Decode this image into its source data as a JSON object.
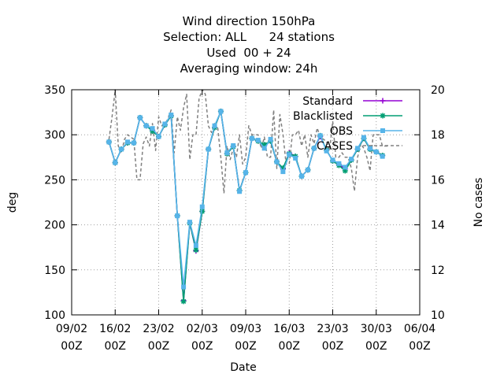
{
  "chart_data": {
    "type": "line",
    "title_lines": [
      "Wind direction 150hPa",
      "Selection: ALL      24 stations",
      "Used  00 + 24",
      "Averaging window: 24h"
    ],
    "xlabel": "Date",
    "ylabel": "deg",
    "y2label": "No cases",
    "x_ticks": [
      {
        "date": "2025-02-09",
        "line1": "09/02",
        "line2": "00Z"
      },
      {
        "date": "2025-02-16",
        "line1": "16/02",
        "line2": "00Z"
      },
      {
        "date": "2025-02-23",
        "line1": "23/02",
        "line2": "00Z"
      },
      {
        "date": "2025-03-02",
        "line1": "02/03",
        "line2": "00Z"
      },
      {
        "date": "2025-03-09",
        "line1": "09/03",
        "line2": "00Z"
      },
      {
        "date": "2025-03-16",
        "line1": "16/03",
        "line2": "00Z"
      },
      {
        "date": "2025-03-23",
        "line1": "23/03",
        "line2": "00Z"
      },
      {
        "date": "2025-03-30",
        "line1": "30/03",
        "line2": "00Z"
      },
      {
        "date": "2025-04-06",
        "line1": "06/04",
        "line2": "00Z"
      }
    ],
    "xlim": [
      "2025-02-09",
      "2025-04-06"
    ],
    "ylim": [
      100,
      350
    ],
    "y_ticks": [
      100,
      150,
      200,
      250,
      300,
      350
    ],
    "y2lim": [
      10,
      20
    ],
    "y2_ticks": [
      10,
      12,
      14,
      16,
      18,
      20
    ],
    "grid": true,
    "legend_position": "top-right",
    "series": [
      {
        "name": "Standard",
        "color": "#9400d3",
        "marker": "plus",
        "x": [
          "2025-02-15 00Z",
          "2025-02-16 00Z",
          "2025-02-17 00Z",
          "2025-02-18 00Z",
          "2025-02-19 00Z",
          "2025-02-20 00Z",
          "2025-02-21 00Z",
          "2025-02-22 00Z",
          "2025-02-23 00Z",
          "2025-02-24 00Z",
          "2025-02-25 00Z",
          "2025-02-26 00Z",
          "2025-02-27 00Z",
          "2025-02-28 00Z",
          "2025-03-01 00Z",
          "2025-03-02 00Z",
          "2025-03-03 00Z",
          "2025-03-04 00Z",
          "2025-03-05 00Z",
          "2025-03-06 00Z",
          "2025-03-07 00Z",
          "2025-03-08 00Z",
          "2025-03-09 00Z",
          "2025-03-10 00Z",
          "2025-03-11 00Z",
          "2025-03-12 00Z",
          "2025-03-13 00Z",
          "2025-03-14 00Z",
          "2025-03-15 00Z",
          "2025-03-16 00Z",
          "2025-03-17 00Z",
          "2025-03-18 00Z",
          "2025-03-19 00Z",
          "2025-03-20 00Z",
          "2025-03-21 00Z",
          "2025-03-22 00Z",
          "2025-03-23 00Z",
          "2025-03-24 00Z",
          "2025-03-25 00Z",
          "2025-03-26 00Z",
          "2025-03-27 00Z",
          "2025-03-28 00Z",
          "2025-03-29 00Z",
          "2025-03-30 00Z",
          "2025-03-31 00Z"
        ],
        "y": [
          292,
          269,
          284,
          291,
          291,
          319,
          310,
          305,
          298,
          311,
          321,
          210,
          116,
          202,
          171,
          215,
          284,
          308,
          326,
          279,
          287,
          238,
          258,
          296,
          293,
          288,
          293,
          270,
          262,
          280,
          276,
          254,
          261,
          285,
          298,
          283,
          271,
          267,
          262,
          272,
          284,
          296,
          284,
          281,
          277
        ]
      },
      {
        "name": "Blacklisted",
        "color": "#009e73",
        "marker": "star",
        "x": [
          "2025-02-15 00Z",
          "2025-02-16 00Z",
          "2025-02-17 00Z",
          "2025-02-18 00Z",
          "2025-02-19 00Z",
          "2025-02-20 00Z",
          "2025-02-21 00Z",
          "2025-02-22 00Z",
          "2025-02-23 00Z",
          "2025-02-24 00Z",
          "2025-02-25 00Z",
          "2025-02-26 00Z",
          "2025-02-27 00Z",
          "2025-02-28 00Z",
          "2025-03-01 00Z",
          "2025-03-02 00Z",
          "2025-03-03 00Z",
          "2025-03-04 00Z",
          "2025-03-05 00Z",
          "2025-03-06 00Z",
          "2025-03-07 00Z",
          "2025-03-08 00Z",
          "2025-03-09 00Z",
          "2025-03-10 00Z",
          "2025-03-11 00Z",
          "2025-03-12 00Z",
          "2025-03-13 00Z",
          "2025-03-14 00Z",
          "2025-03-15 00Z",
          "2025-03-16 00Z",
          "2025-03-17 00Z",
          "2025-03-18 00Z",
          "2025-03-19 00Z",
          "2025-03-20 00Z",
          "2025-03-21 00Z",
          "2025-03-22 00Z",
          "2025-03-23 00Z",
          "2025-03-24 00Z",
          "2025-03-25 00Z",
          "2025-03-26 00Z",
          "2025-03-27 00Z",
          "2025-03-28 00Z",
          "2025-03-29 00Z",
          "2025-03-30 00Z",
          "2025-03-31 00Z"
        ],
        "y": [
          292,
          269,
          284,
          291,
          291,
          319,
          310,
          304,
          298,
          311,
          321,
          210,
          115,
          202,
          172,
          215,
          284,
          308,
          326,
          279,
          287,
          238,
          258,
          296,
          293,
          289,
          293,
          270,
          263,
          279,
          276,
          254,
          261,
          285,
          299,
          283,
          271,
          266,
          260,
          272,
          284,
          296,
          284,
          281,
          277
        ]
      },
      {
        "name": "OBS",
        "color": "#56b4e9",
        "marker": "square",
        "x": [
          "2025-02-15 00Z",
          "2025-02-16 00Z",
          "2025-02-17 00Z",
          "2025-02-18 00Z",
          "2025-02-19 00Z",
          "2025-02-20 00Z",
          "2025-02-21 00Z",
          "2025-02-22 00Z",
          "2025-02-23 00Z",
          "2025-02-24 00Z",
          "2025-02-25 00Z",
          "2025-02-26 00Z",
          "2025-02-27 00Z",
          "2025-02-28 00Z",
          "2025-03-01 00Z",
          "2025-03-02 00Z",
          "2025-03-03 00Z",
          "2025-03-04 00Z",
          "2025-03-05 00Z",
          "2025-03-06 00Z",
          "2025-03-07 00Z",
          "2025-03-08 00Z",
          "2025-03-09 00Z",
          "2025-03-10 00Z",
          "2025-03-11 00Z",
          "2025-03-12 00Z",
          "2025-03-13 00Z",
          "2025-03-14 00Z",
          "2025-03-15 00Z",
          "2025-03-16 00Z",
          "2025-03-17 00Z",
          "2025-03-18 00Z",
          "2025-03-19 00Z",
          "2025-03-20 00Z",
          "2025-03-21 00Z",
          "2025-03-22 00Z",
          "2025-03-23 00Z",
          "2025-03-24 00Z",
          "2025-03-25 00Z",
          "2025-03-26 00Z",
          "2025-03-27 00Z",
          "2025-03-28 00Z",
          "2025-03-29 00Z",
          "2025-03-30 00Z",
          "2025-03-31 00Z"
        ],
        "y": [
          292,
          269,
          284,
          292,
          291,
          319,
          310,
          307,
          298,
          312,
          322,
          210,
          131,
          203,
          177,
          220,
          284,
          310,
          326,
          280,
          288,
          237,
          258,
          296,
          294,
          285,
          295,
          270,
          259,
          278,
          274,
          254,
          261,
          285,
          299,
          282,
          272,
          268,
          264,
          273,
          285,
          297,
          285,
          281,
          276
        ]
      },
      {
        "name": "CASES",
        "color": "#808080",
        "style": "dashed",
        "axis": "y2",
        "x": [
          "2025-02-15 00Z",
          "2025-02-15 12Z",
          "2025-02-16 00Z",
          "2025-02-16 12Z",
          "2025-02-17 00Z",
          "2025-02-17 12Z",
          "2025-02-18 00Z",
          "2025-02-18 12Z",
          "2025-02-19 00Z",
          "2025-02-19 12Z",
          "2025-02-20 00Z",
          "2025-02-20 12Z",
          "2025-02-21 00Z",
          "2025-02-21 12Z",
          "2025-02-22 00Z",
          "2025-02-22 12Z",
          "2025-02-23 00Z",
          "2025-02-23 12Z",
          "2025-02-24 00Z",
          "2025-02-24 12Z",
          "2025-02-25 00Z",
          "2025-02-25 12Z",
          "2025-02-26 00Z",
          "2025-02-26 12Z",
          "2025-02-27 00Z",
          "2025-02-27 12Z",
          "2025-02-28 00Z",
          "2025-02-28 12Z",
          "2025-03-01 00Z",
          "2025-03-01 12Z",
          "2025-03-02 00Z",
          "2025-03-02 12Z",
          "2025-03-03 00Z",
          "2025-03-03 12Z",
          "2025-03-04 00Z",
          "2025-03-04 12Z",
          "2025-03-05 00Z",
          "2025-03-05 12Z",
          "2025-03-06 00Z",
          "2025-03-06 12Z",
          "2025-03-07 00Z",
          "2025-03-07 12Z",
          "2025-03-08 00Z",
          "2025-03-08 12Z",
          "2025-03-09 00Z",
          "2025-03-09 12Z",
          "2025-03-10 00Z",
          "2025-03-10 12Z",
          "2025-03-11 00Z",
          "2025-03-11 12Z",
          "2025-03-12 00Z",
          "2025-03-12 12Z",
          "2025-03-13 00Z",
          "2025-03-13 12Z",
          "2025-03-14 00Z",
          "2025-03-14 12Z",
          "2025-03-15 00Z",
          "2025-03-15 12Z",
          "2025-03-16 00Z",
          "2025-03-16 12Z",
          "2025-03-17 00Z",
          "2025-03-17 12Z",
          "2025-03-18 00Z",
          "2025-03-18 12Z",
          "2025-03-19 00Z",
          "2025-03-19 12Z",
          "2025-03-20 00Z",
          "2025-03-20 12Z",
          "2025-03-21 00Z",
          "2025-03-21 12Z",
          "2025-03-22 00Z",
          "2025-03-22 12Z",
          "2025-03-23 00Z",
          "2025-03-23 12Z",
          "2025-03-24 00Z",
          "2025-03-24 12Z",
          "2025-03-25 00Z",
          "2025-03-25 12Z",
          "2025-03-26 00Z",
          "2025-03-26 12Z",
          "2025-03-27 00Z",
          "2025-03-27 12Z",
          "2025-03-28 00Z",
          "2025-03-28 12Z",
          "2025-03-29 00Z",
          "2025-03-29 12Z",
          "2025-03-30 00Z",
          "2025-03-30 12Z",
          "2025-03-31 00Z",
          "2025-03-31 12Z",
          "2025-04-01 00Z"
        ],
        "y": [
          17.8,
          18.8,
          20,
          17.5,
          17.2,
          17.8,
          18,
          17.9,
          17.8,
          16,
          16,
          17.6,
          17.9,
          17.5,
          18.5,
          17.3,
          18.8,
          18.4,
          18.5,
          18.7,
          19.1,
          17.2,
          18.8,
          18.2,
          19.2,
          19.8,
          16.9,
          18.0,
          18.0,
          19.6,
          20,
          19.8,
          18.4,
          18.1,
          18.5,
          18.3,
          17.0,
          15.4,
          17.5,
          16.9,
          17.4,
          17.0,
          18.0,
          16.7,
          17.0,
          18.4,
          18.0,
          18.0,
          18.0,
          17.4,
          17.9,
          17.0,
          17.0,
          19.1,
          16.5,
          18.9,
          18.0,
          16.7,
          16.7,
          18.0,
          18.0,
          18.2,
          17.5,
          18.0,
          17.0,
          18.0,
          17.6,
          18.3,
          17.9,
          17.8,
          17.7,
          17.3,
          18.6,
          17.0,
          17.0,
          17.2,
          17.0,
          17.0,
          16.5,
          15.5,
          17.0,
          17.6,
          17.4,
          17.0,
          16.4,
          18.0,
          18.0,
          18.0,
          17.5,
          17.5,
          17.5
        ]
      }
    ]
  }
}
